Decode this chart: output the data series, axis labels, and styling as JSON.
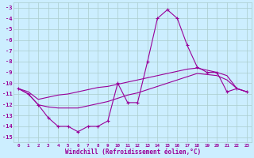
{
  "x": [
    0,
    1,
    2,
    3,
    4,
    5,
    6,
    7,
    8,
    9,
    10,
    11,
    12,
    13,
    14,
    15,
    16,
    17,
    18,
    19,
    20,
    21,
    22,
    23
  ],
  "line_jagged": [
    -10.5,
    -11.0,
    -12.0,
    -13.2,
    -14.0,
    -14.0,
    -14.5,
    -14.0,
    -14.0,
    -13.5,
    -10.0,
    -11.8,
    -11.8,
    -8.0,
    -4.0,
    -3.2,
    -4.0,
    -6.5,
    -8.5,
    -9.0,
    -9.0,
    -10.8,
    -10.5,
    -10.8
  ],
  "line_upper": [
    -10.5,
    -10.8,
    -11.5,
    -11.3,
    -11.1,
    -11.0,
    -10.8,
    -10.6,
    -10.4,
    -10.3,
    -10.1,
    -9.9,
    -9.7,
    -9.5,
    -9.3,
    -9.1,
    -8.9,
    -8.7,
    -8.6,
    -8.8,
    -9.0,
    -9.3,
    -10.5,
    -10.8
  ],
  "line_lower": [
    -10.5,
    -11.0,
    -12.0,
    -12.2,
    -12.3,
    -12.3,
    -12.3,
    -12.1,
    -11.9,
    -11.7,
    -11.4,
    -11.1,
    -10.9,
    -10.6,
    -10.3,
    -10.0,
    -9.7,
    -9.4,
    -9.1,
    -9.2,
    -9.3,
    -9.7,
    -10.5,
    -10.8
  ],
  "color": "#990099",
  "bg_color": "#cceeff",
  "grid_color": "#aacccc",
  "xlabel": "Windchill (Refroidissement éolien,°C)",
  "ylim": [
    -15.5,
    -2.5
  ],
  "xlim": [
    -0.5,
    23.5
  ],
  "yticks": [
    -3,
    -4,
    -5,
    -6,
    -7,
    -8,
    -9,
    -10,
    -11,
    -12,
    -13,
    -14,
    -15
  ],
  "xticks": [
    0,
    1,
    2,
    3,
    4,
    5,
    6,
    7,
    8,
    9,
    10,
    11,
    12,
    13,
    14,
    15,
    16,
    17,
    18,
    19,
    20,
    21,
    22,
    23
  ],
  "marker_size": 2.5,
  "line_width": 0.8
}
